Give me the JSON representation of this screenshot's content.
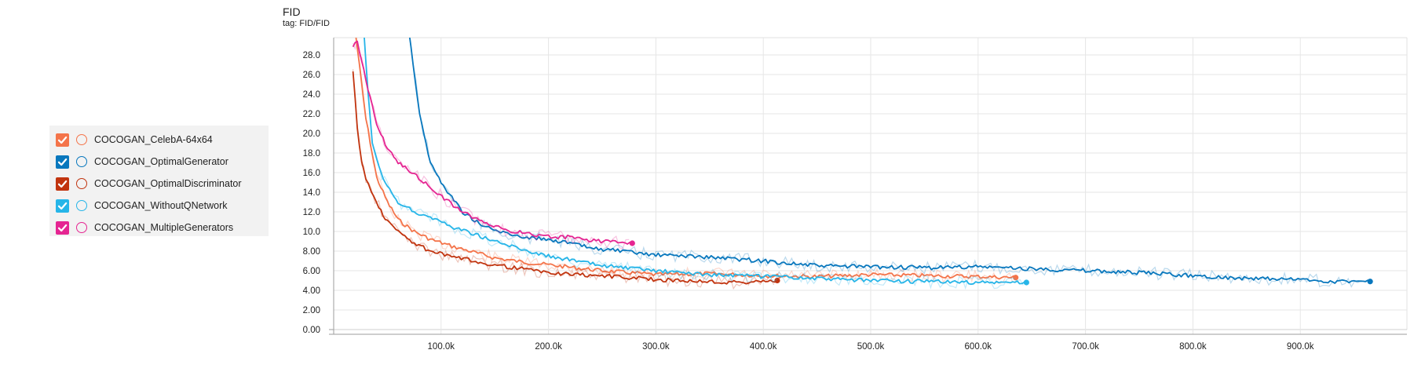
{
  "chart_data": {
    "type": "line",
    "title": "FID",
    "subtitle": "tag: FID/FID",
    "xlabel": "",
    "ylabel": "",
    "xlim": [
      0,
      1000000
    ],
    "ylim": [
      0,
      30
    ],
    "grid": true,
    "legend_position": "left",
    "x_ticks": [
      {
        "value": 100000,
        "label": "100.0k"
      },
      {
        "value": 200000,
        "label": "200.0k"
      },
      {
        "value": 300000,
        "label": "300.0k"
      },
      {
        "value": 400000,
        "label": "400.0k"
      },
      {
        "value": 500000,
        "label": "500.0k"
      },
      {
        "value": 600000,
        "label": "600.0k"
      },
      {
        "value": 700000,
        "label": "700.0k"
      },
      {
        "value": 800000,
        "label": "800.0k"
      },
      {
        "value": 900000,
        "label": "900.0k"
      }
    ],
    "y_ticks": [
      {
        "value": 0,
        "label": "0.00"
      },
      {
        "value": 2,
        "label": "2.00"
      },
      {
        "value": 4,
        "label": "4.00"
      },
      {
        "value": 6,
        "label": "6.00"
      },
      {
        "value": 8,
        "label": "8.00"
      },
      {
        "value": 10,
        "label": "10.0"
      },
      {
        "value": 12,
        "label": "12.0"
      },
      {
        "value": 14,
        "label": "14.0"
      },
      {
        "value": 16,
        "label": "16.0"
      },
      {
        "value": 18,
        "label": "18.0"
      },
      {
        "value": 20,
        "label": "20.0"
      },
      {
        "value": 22,
        "label": "22.0"
      },
      {
        "value": 24,
        "label": "24.0"
      },
      {
        "value": 26,
        "label": "26.0"
      },
      {
        "value": 28,
        "label": "28.0"
      }
    ],
    "series": [
      {
        "name": "COCOGAN_CelebA-64x64",
        "color": "#f4744a",
        "checked": true,
        "x": [
          20000,
          30000,
          40000,
          50000,
          60000,
          75000,
          90000,
          110000,
          130000,
          150000,
          175000,
          200000,
          250000,
          300000,
          350000,
          400000,
          450000,
          500000,
          550000,
          600000,
          635000
        ],
        "y": [
          30.5,
          21.5,
          15.5,
          13.0,
          11.2,
          10.0,
          9.2,
          8.5,
          7.9,
          7.3,
          6.9,
          6.6,
          6.0,
          5.6,
          5.7,
          5.5,
          5.4,
          5.6,
          5.5,
          5.4,
          5.3
        ]
      },
      {
        "name": "COCOGAN_OptimalGenerator",
        "color": "#0877bd",
        "checked": true,
        "x": [
          70000,
          80000,
          90000,
          100000,
          110000,
          120000,
          140000,
          160000,
          180000,
          200000,
          220000,
          240000,
          260000,
          280000,
          300000,
          330000,
          360000,
          400000,
          450000,
          500000,
          550000,
          600000,
          650000,
          700000,
          750000,
          800000,
          850000,
          900000,
          930000,
          965000
        ],
        "y": [
          30.5,
          22.0,
          17.0,
          15.0,
          13.5,
          12.0,
          10.5,
          9.8,
          9.4,
          9.2,
          8.8,
          8.3,
          8.1,
          7.8,
          7.6,
          7.5,
          7.3,
          7.0,
          6.5,
          6.4,
          6.3,
          6.4,
          6.2,
          6.0,
          5.8,
          5.5,
          5.2,
          5.1,
          4.9,
          4.9
        ]
      },
      {
        "name": "COCOGAN_OptimalDiscriminator",
        "color": "#c1340f",
        "checked": true,
        "x": [
          18000,
          22000,
          26000,
          30000,
          35000,
          42000,
          50000,
          60000,
          75000,
          90000,
          110000,
          130000,
          150000,
          175000,
          200000,
          225000,
          250000,
          275000,
          300000,
          325000,
          350000,
          375000,
          400000,
          413000
        ],
        "y": [
          26.5,
          20.5,
          17.0,
          15.5,
          14.0,
          12.5,
          11.0,
          10.0,
          8.8,
          8.0,
          7.4,
          7.0,
          6.6,
          6.2,
          5.8,
          5.6,
          5.5,
          5.3,
          5.1,
          5.0,
          4.9,
          4.8,
          4.9,
          5.0
        ]
      },
      {
        "name": "COCOGAN_WithoutQNetwork",
        "color": "#26b5e8",
        "checked": true,
        "x": [
          28000,
          32000,
          36000,
          42000,
          50000,
          60000,
          75000,
          90000,
          110000,
          130000,
          150000,
          175000,
          200000,
          250000,
          300000,
          350000,
          400000,
          450000,
          500000,
          550000,
          600000,
          645000
        ],
        "y": [
          30.5,
          24.0,
          19.0,
          16.5,
          14.5,
          13.0,
          12.0,
          11.5,
          10.5,
          9.8,
          9.0,
          8.2,
          7.5,
          6.5,
          6.0,
          5.6,
          5.4,
          5.2,
          5.0,
          4.9,
          4.8,
          4.8
        ]
      },
      {
        "name": "COCOGAN_MultipleGenerators",
        "color": "#e52592",
        "checked": true,
        "x": [
          18000,
          22000,
          26000,
          32000,
          40000,
          50000,
          60000,
          75000,
          90000,
          105000,
          120000,
          140000,
          160000,
          180000,
          200000,
          220000,
          240000,
          260000,
          278000
        ],
        "y": [
          28.8,
          29.5,
          27.5,
          24.5,
          21.0,
          18.5,
          17.0,
          15.8,
          14.5,
          13.2,
          12.0,
          10.8,
          10.2,
          9.8,
          9.5,
          9.4,
          9.1,
          8.9,
          8.8
        ]
      }
    ]
  }
}
